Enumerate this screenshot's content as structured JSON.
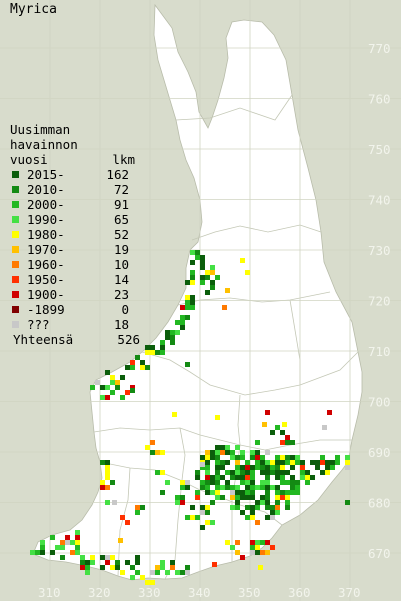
{
  "title": "Myrica",
  "legend": {
    "header_lines": [
      "Uusimman",
      "havainnon"
    ],
    "col_year": "vuosi",
    "col_count": "lkm",
    "items": [
      {
        "label": "2015-",
        "count": "162",
        "color": "#0b5e0b"
      },
      {
        "label": "2010-",
        "count": "72",
        "color": "#138a13"
      },
      {
        "label": "2000-",
        "count": "91",
        "color": "#22b822"
      },
      {
        "label": "1990-",
        "count": "65",
        "color": "#44e044"
      },
      {
        "label": "1980-",
        "count": "52",
        "color": "#ffff00"
      },
      {
        "label": "1970-",
        "count": "19",
        "color": "#ffc000"
      },
      {
        "label": "1960-",
        "count": "10",
        "color": "#ff7a00"
      },
      {
        "label": "1950-",
        "count": "14",
        "color": "#ff3000"
      },
      {
        "label": "1900-",
        "count": "23",
        "color": "#d00000"
      },
      {
        "label": "-1899",
        "count": "0",
        "color": "#800000"
      },
      {
        "label": "???",
        "count": "18",
        "color": "#c8c8c8"
      }
    ],
    "total_label": "Yhteensä",
    "total_count": "526"
  },
  "grid": {
    "x_labels": [
      "310",
      "320",
      "330",
      "340",
      "350",
      "360",
      "370"
    ],
    "y_labels": [
      "770",
      "760",
      "750",
      "740",
      "730",
      "720",
      "710",
      "700",
      "690",
      "680",
      "670"
    ]
  },
  "colors": {
    "background": "#d8dccc",
    "land": "#ffffff",
    "grid": "#c8ccb8",
    "border": "#b4b8a8"
  }
}
